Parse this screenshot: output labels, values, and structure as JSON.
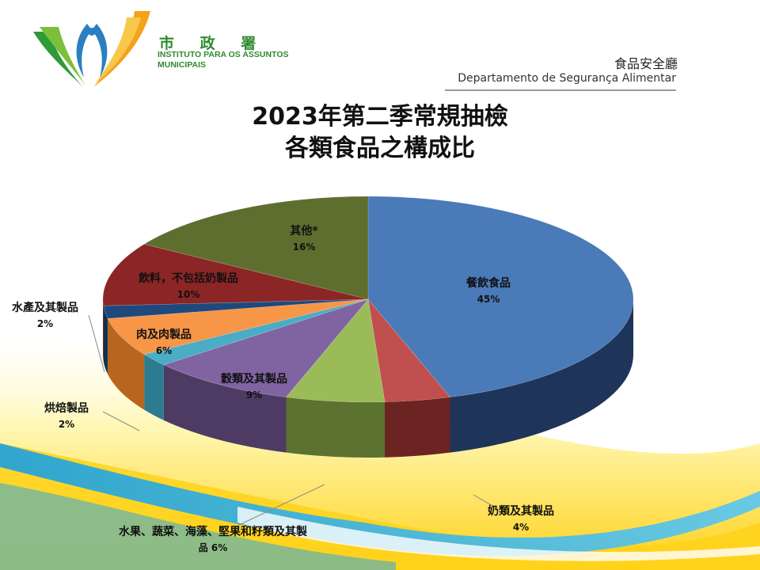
{
  "header": {
    "org_name_cn": "市 政 署",
    "org_name_pt": "INSTITUTO PARA OS ASSUNTOS MUNICIPAIS",
    "department_cn": "食品安全廳",
    "department_pt": "Departamento de Segurança Alimentar"
  },
  "chart_data": {
    "type": "pie",
    "title": "2023年第二季常規抽檢",
    "subtitle": "各類食品之構成比",
    "slices": [
      {
        "label": "餐飲食品",
        "value": 45,
        "value_label": "45%",
        "color": "#4a7ab8",
        "side_color": "#1f3459"
      },
      {
        "label": "奶類及其製品",
        "value": 4,
        "value_label": "4%",
        "color": "#c0504d",
        "side_color": "#6b2422"
      },
      {
        "label": "水果、蔬菜、海藻、堅果和籽類及其製品",
        "value": 6,
        "value_label": "6%",
        "color": "#9bbb59",
        "side_color": "#5c7230"
      },
      {
        "label": "穀類及其製品",
        "value": 9,
        "value_label": "9%",
        "color": "#8064a2",
        "side_color": "#4d3b63"
      },
      {
        "label": "烘焙製品",
        "value": 2,
        "value_label": "2%",
        "color": "#4bacc6",
        "side_color": "#2d7b8f"
      },
      {
        "label": "肉及肉製品",
        "value": 6,
        "value_label": "6%",
        "color": "#f79646",
        "side_color": "#b8661f"
      },
      {
        "label": "水產及其製品",
        "value": 2,
        "value_label": "2%",
        "color": "#1f497d",
        "side_color": "#13304f"
      },
      {
        "label": "飲料，不包括奶製品",
        "value": 10,
        "value_label": "10%",
        "color": "#8c2525",
        "side_color": "#571616"
      },
      {
        "label": "其他*",
        "value": 16,
        "value_label": "16%",
        "color": "#5e6e2f",
        "side_color": "#3a451c"
      }
    ]
  }
}
